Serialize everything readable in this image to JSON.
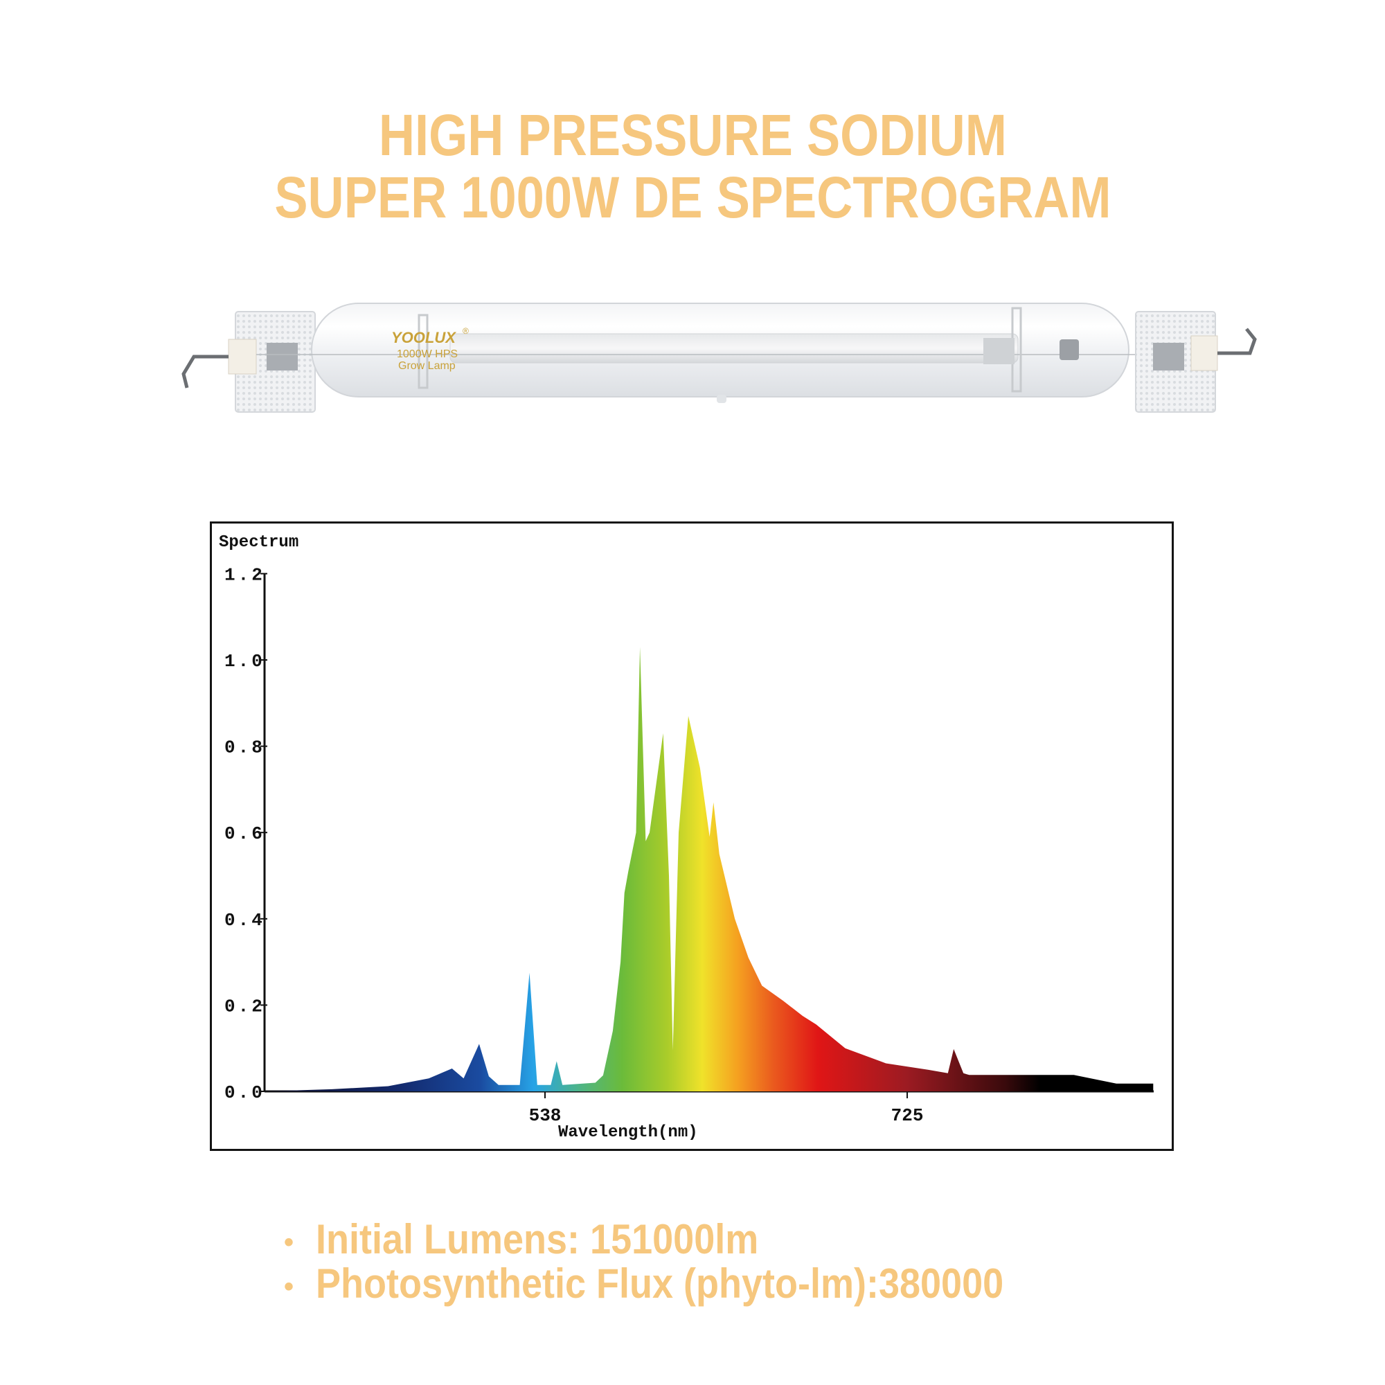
{
  "header": {
    "title_line_1": "HIGH PRESSURE SODIUM",
    "title_line_2": "SUPER 1000W DE SPECTROGRAM",
    "title_color": "#F6C77E"
  },
  "product_image": {
    "brand": "YOOLUX",
    "registered_mark": "®",
    "label_line_1": "1000W HPS",
    "label_line_2": "Grow Lamp",
    "label_color": "#C9A23A"
  },
  "specs": {
    "bullet": "•",
    "items": [
      {
        "label": "Initial Lumens:",
        "value": "151000lm",
        "text": "Initial Lumens:  151000lm"
      },
      {
        "label": "Photosynthetic Flux (phyto-lm):",
        "value": "380000",
        "text": "Photosynthetic Flux (phyto-lm):380000"
      }
    ]
  },
  "chart_data": {
    "type": "area",
    "title": "Spectrum",
    "xlabel": "Wavelength(nm)",
    "ylabel": "Spectrum",
    "x_ticks": [
      538,
      725
    ],
    "y_ticks": [
      "0.0",
      "0.2",
      "0.4",
      "0.6",
      "0.8",
      "1.0",
      "1.2"
    ],
    "xlim": [
      393,
      852
    ],
    "ylim": [
      0,
      1.2
    ],
    "grid": false,
    "legend": null,
    "fill": "visible-spectrum color gradient (blue → green → yellow → orange → red → dark red → black)",
    "x": [
      393,
      428,
      457,
      478,
      490,
      496,
      504,
      509,
      514,
      525,
      530,
      534,
      541,
      544,
      547,
      564,
      568,
      573,
      577,
      579,
      581,
      585,
      587,
      590,
      592,
      599,
      602,
      604,
      607,
      612,
      618,
      623,
      625,
      628,
      636,
      643,
      650,
      661,
      671,
      678,
      693,
      714,
      736,
      746,
      749,
      754,
      757,
      811,
      833,
      852
    ],
    "values": [
      0.0,
      0.005,
      0.012,
      0.03,
      0.053,
      0.03,
      0.11,
      0.035,
      0.015,
      0.015,
      0.275,
      0.015,
      0.015,
      0.07,
      0.015,
      0.02,
      0.037,
      0.14,
      0.3,
      0.46,
      0.51,
      0.6,
      1.03,
      0.58,
      0.6,
      0.83,
      0.5,
      0.095,
      0.6,
      0.87,
      0.75,
      0.59,
      0.67,
      0.55,
      0.4,
      0.31,
      0.245,
      0.21,
      0.175,
      0.155,
      0.1,
      0.065,
      0.05,
      0.042,
      0.098,
      0.042,
      0.038,
      0.038,
      0.018,
      0.018
    ]
  }
}
